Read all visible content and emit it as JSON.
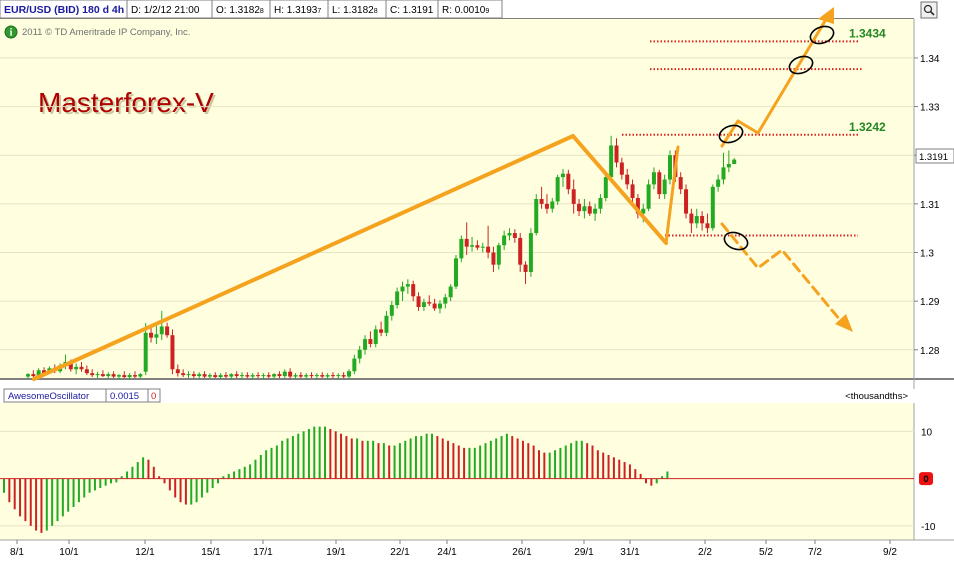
{
  "header": {
    "symbol": "EUR/USD (BID) 180 d 4h",
    "date": "D: 1/2/12 21:00",
    "open": "O: 1.3182",
    "open_sub": "8",
    "high": "H: 1.3193",
    "high_sub": "7",
    "low": "L: 1.3182",
    "low_sub": "8",
    "close": "C: 1.3191",
    "range": "R: 0.0010",
    "range_sub": "9",
    "copyright": "2011 © TD Ameritrade IP Company, Inc.",
    "brand": "Masterforex-V"
  },
  "oscillator": {
    "name": "AwesomeOscillator",
    "value": "0.0015",
    "zero_field": "0",
    "units": "<thousandths>",
    "zero_badge": "0"
  },
  "colors": {
    "panel_bg": "#ffffe0",
    "bull": "#22aa22",
    "bear": "#cc2222",
    "annotation": "#f5a21e",
    "level_line": "#dd2222",
    "level_label": "#228822"
  },
  "icons": [
    "info-icon",
    "zoom-icon"
  ],
  "chart_data": [
    {
      "type": "candlestick",
      "series": "EUR/USD (BID)",
      "ylim": [
        1.274,
        1.348
      ],
      "yticks": [
        "1.34",
        "1.33",
        "1.32",
        "1.31",
        "1.3",
        "1.29",
        "1.28"
      ],
      "last_price_label": "1.3191",
      "xticks": [
        "8/1",
        "10/1",
        "12/1",
        "15/1",
        "17/1",
        "19/1",
        "22/1",
        "24/1",
        "26/1",
        "29/1",
        "31/1",
        "2/2",
        "5/2",
        "7/2",
        "9/2"
      ],
      "candles": [
        [
          1.2745,
          1.2752,
          1.274,
          1.275
        ],
        [
          1.275,
          1.2758,
          1.2744,
          1.2746
        ],
        [
          1.2746,
          1.2762,
          1.2742,
          1.2758
        ],
        [
          1.2758,
          1.2764,
          1.2748,
          1.2752
        ],
        [
          1.2752,
          1.2766,
          1.275,
          1.2762
        ],
        [
          1.2762,
          1.277,
          1.2752,
          1.2756
        ],
        [
          1.2756,
          1.2772,
          1.2752,
          1.2768
        ],
        [
          1.2768,
          1.279,
          1.276,
          1.2775
        ],
        [
          1.2775,
          1.278,
          1.2755,
          1.276
        ],
        [
          1.276,
          1.2772,
          1.275,
          1.2765
        ],
        [
          1.2765,
          1.2775,
          1.2755,
          1.276
        ],
        [
          1.276,
          1.2768,
          1.2748,
          1.2752
        ],
        [
          1.2752,
          1.276,
          1.2744,
          1.2748
        ],
        [
          1.2748,
          1.2755,
          1.2742,
          1.275
        ],
        [
          1.275,
          1.2758,
          1.2744,
          1.2746
        ],
        [
          1.2746,
          1.2754,
          1.274,
          1.275
        ],
        [
          1.275,
          1.2756,
          1.2742,
          1.2745
        ],
        [
          1.2745,
          1.275,
          1.2738,
          1.2748
        ],
        [
          1.2748,
          1.2756,
          1.2742,
          1.2744
        ],
        [
          1.2744,
          1.2752,
          1.2738,
          1.2748
        ],
        [
          1.2748,
          1.2756,
          1.2742,
          1.2745
        ],
        [
          1.2745,
          1.2752,
          1.274,
          1.275
        ],
        [
          1.2755,
          1.2855,
          1.2748,
          1.2835
        ],
        [
          1.2835,
          1.2852,
          1.2815,
          1.2825
        ],
        [
          1.2825,
          1.285,
          1.2812,
          1.2832
        ],
        [
          1.2832,
          1.288,
          1.282,
          1.2848
        ],
        [
          1.2848,
          1.2856,
          1.2825,
          1.283
        ],
        [
          1.283,
          1.2842,
          1.275,
          1.276
        ],
        [
          1.276,
          1.277,
          1.2745,
          1.2752
        ],
        [
          1.2752,
          1.276,
          1.2744,
          1.2748
        ],
        [
          1.2748,
          1.2756,
          1.2742,
          1.275
        ],
        [
          1.275,
          1.2756,
          1.2742,
          1.2746
        ],
        [
          1.2746,
          1.2754,
          1.274,
          1.275
        ],
        [
          1.275,
          1.2756,
          1.2742,
          1.2745
        ],
        [
          1.2745,
          1.2752,
          1.274,
          1.2748
        ],
        [
          1.2748,
          1.2754,
          1.2742,
          1.2744
        ],
        [
          1.2744,
          1.2752,
          1.274,
          1.2748
        ],
        [
          1.2748,
          1.2754,
          1.2742,
          1.2745
        ],
        [
          1.2745,
          1.2752,
          1.274,
          1.275
        ],
        [
          1.275,
          1.2756,
          1.2742,
          1.2746
        ],
        [
          1.2746,
          1.2754,
          1.274,
          1.2748
        ],
        [
          1.2748,
          1.2754,
          1.2742,
          1.2745
        ],
        [
          1.2745,
          1.2752,
          1.274,
          1.2748
        ],
        [
          1.2748,
          1.2754,
          1.2742,
          1.2746
        ],
        [
          1.2746,
          1.2752,
          1.274,
          1.2748
        ],
        [
          1.2748,
          1.2754,
          1.2742,
          1.2745
        ],
        [
          1.2745,
          1.2752,
          1.274,
          1.275
        ],
        [
          1.275,
          1.2756,
          1.2742,
          1.2746
        ],
        [
          1.2746,
          1.276,
          1.2742,
          1.2755
        ],
        [
          1.2755,
          1.2762,
          1.274,
          1.2745
        ],
        [
          1.2745,
          1.2752,
          1.274,
          1.2748
        ],
        [
          1.2748,
          1.2754,
          1.2742,
          1.2745
        ],
        [
          1.2745,
          1.2752,
          1.274,
          1.2748
        ],
        [
          1.2748,
          1.2754,
          1.2742,
          1.2746
        ],
        [
          1.2746,
          1.2752,
          1.274,
          1.2748
        ],
        [
          1.2748,
          1.2754,
          1.2742,
          1.2745
        ],
        [
          1.2745,
          1.2752,
          1.274,
          1.2748
        ],
        [
          1.2748,
          1.2754,
          1.2742,
          1.2746
        ],
        [
          1.2746,
          1.2752,
          1.274,
          1.2748
        ],
        [
          1.2748,
          1.2754,
          1.2742,
          1.2745
        ],
        [
          1.2745,
          1.276,
          1.274,
          1.2756
        ],
        [
          1.2756,
          1.279,
          1.275,
          1.2782
        ],
        [
          1.2782,
          1.2808,
          1.2772,
          1.28
        ],
        [
          1.28,
          1.283,
          1.279,
          1.2822
        ],
        [
          1.2822,
          1.2838,
          1.2805,
          1.2812
        ],
        [
          1.2812,
          1.285,
          1.2805,
          1.2842
        ],
        [
          1.2842,
          1.2858,
          1.2828,
          1.2835
        ],
        [
          1.2835,
          1.288,
          1.2828,
          1.287
        ],
        [
          1.287,
          1.29,
          1.286,
          1.2892
        ],
        [
          1.2892,
          1.2928,
          1.2885,
          1.292
        ],
        [
          1.292,
          1.294,
          1.29,
          1.293
        ],
        [
          1.293,
          1.2945,
          1.2915,
          1.2935
        ],
        [
          1.2935,
          1.2942,
          1.29,
          1.291
        ],
        [
          1.291,
          1.2918,
          1.288,
          1.2888
        ],
        [
          1.2888,
          1.2905,
          1.288,
          1.2898
        ],
        [
          1.2898,
          1.2912,
          1.289,
          1.2895
        ],
        [
          1.2895,
          1.2905,
          1.288,
          1.2885
        ],
        [
          1.2885,
          1.2902,
          1.2875,
          1.2895
        ],
        [
          1.2895,
          1.2915,
          1.2885,
          1.2908
        ],
        [
          1.2908,
          1.2935,
          1.29,
          1.293
        ],
        [
          1.293,
          1.2995,
          1.2925,
          1.2988
        ],
        [
          1.2988,
          1.3035,
          1.298,
          1.3028
        ],
        [
          1.3028,
          1.3062,
          1.2995,
          1.3012
        ],
        [
          1.3012,
          1.3032,
          1.3002,
          1.3015
        ],
        [
          1.3015,
          1.3025,
          1.3005,
          1.301
        ],
        [
          1.301,
          1.302,
          1.3,
          1.3012
        ],
        [
          1.3012,
          1.3055,
          1.2988,
          1.3
        ],
        [
          1.3,
          1.3012,
          1.296,
          1.2975
        ],
        [
          1.2975,
          1.302,
          1.2965,
          1.3015
        ],
        [
          1.3015,
          1.3045,
          1.3005,
          1.3035
        ],
        [
          1.3035,
          1.305,
          1.3025,
          1.304
        ],
        [
          1.304,
          1.3048,
          1.302,
          1.303
        ],
        [
          1.303,
          1.304,
          1.296,
          1.2975
        ],
        [
          1.2975,
          1.2982,
          1.2935,
          1.296
        ],
        [
          1.296,
          1.305,
          1.295,
          1.304
        ],
        [
          1.304,
          1.312,
          1.3035,
          1.311
        ],
        [
          1.311,
          1.3135,
          1.309,
          1.31
        ],
        [
          1.31,
          1.312,
          1.308,
          1.309
        ],
        [
          1.309,
          1.3112,
          1.3082,
          1.3105
        ],
        [
          1.3105,
          1.316,
          1.3098,
          1.3155
        ],
        [
          1.3155,
          1.3172,
          1.3135,
          1.3162
        ],
        [
          1.3162,
          1.317,
          1.312,
          1.313
        ],
        [
          1.313,
          1.315,
          1.308,
          1.31
        ],
        [
          1.31,
          1.311,
          1.3075,
          1.3085
        ],
        [
          1.3085,
          1.311,
          1.307,
          1.3095
        ],
        [
          1.3095,
          1.3105,
          1.3075,
          1.308
        ],
        [
          1.308,
          1.31,
          1.3065,
          1.309
        ],
        [
          1.309,
          1.312,
          1.308,
          1.3112
        ],
        [
          1.3112,
          1.3165,
          1.3105,
          1.3155
        ],
        [
          1.3155,
          1.324,
          1.315,
          1.322
        ],
        [
          1.322,
          1.3235,
          1.3175,
          1.3185
        ],
        [
          1.3185,
          1.3195,
          1.315,
          1.316
        ],
        [
          1.316,
          1.3172,
          1.313,
          1.314
        ],
        [
          1.314,
          1.315,
          1.31,
          1.3112
        ],
        [
          1.3112,
          1.312,
          1.307,
          1.308
        ],
        [
          1.308,
          1.31,
          1.3062,
          1.309
        ],
        [
          1.309,
          1.315,
          1.3085,
          1.314
        ],
        [
          1.314,
          1.3175,
          1.313,
          1.3165
        ],
        [
          1.3165,
          1.317,
          1.311,
          1.312
        ],
        [
          1.312,
          1.316,
          1.311,
          1.315
        ],
        [
          1.315,
          1.321,
          1.314,
          1.32
        ],
        [
          1.32,
          1.321,
          1.3145,
          1.3155
        ],
        [
          1.3155,
          1.3165,
          1.312,
          1.313
        ],
        [
          1.313,
          1.314,
          1.307,
          1.308
        ],
        [
          1.308,
          1.309,
          1.304,
          1.306
        ],
        [
          1.306,
          1.309,
          1.305,
          1.3075
        ],
        [
          1.3075,
          1.3085,
          1.3045,
          1.306
        ],
        [
          1.306,
          1.308,
          1.304,
          1.305
        ],
        [
          1.305,
          1.314,
          1.3045,
          1.3135
        ],
        [
          1.3135,
          1.316,
          1.3125,
          1.315
        ],
        [
          1.315,
          1.3205,
          1.314,
          1.3175
        ],
        [
          1.3175,
          1.321,
          1.3165,
          1.3182
        ],
        [
          1.3182,
          1.3194,
          1.3182,
          1.3191
        ]
      ],
      "levels": [
        {
          "price": 1.3434,
          "label": "1.3434"
        },
        {
          "price": 1.3377
        },
        {
          "price": 1.3242,
          "label": "1.3242"
        },
        {
          "price": 1.3035
        }
      ]
    },
    {
      "type": "bar",
      "series": "AwesomeOscillator",
      "ylim": [
        -13,
        16
      ],
      "yticks": [
        "10",
        "0",
        "-10"
      ],
      "values": [
        -3,
        -5,
        -6.5,
        -8,
        -9,
        -10,
        -11,
        -11.5,
        -11,
        -10,
        -9,
        -8,
        -7,
        -6,
        -5,
        -4,
        -3,
        -2.5,
        -2,
        -1.5,
        -1,
        -0.8,
        0.5,
        1.5,
        2.5,
        3.5,
        4.5,
        4,
        2.5,
        0.5,
        -1,
        -2.5,
        -4,
        -5,
        -5.5,
        -5.5,
        -5,
        -4,
        -3,
        -2,
        -1,
        0.5,
        1,
        1.5,
        2,
        2.5,
        3,
        4,
        5,
        6,
        6.5,
        7,
        8,
        8.5,
        9,
        9.5,
        10,
        10.5,
        11,
        11,
        11,
        10.5,
        10,
        9.5,
        9,
        8.5,
        8.5,
        8,
        8,
        8,
        7.5,
        7.5,
        7,
        7,
        7.5,
        8,
        8.5,
        9,
        9,
        9.5,
        9.5,
        9,
        8.5,
        8,
        7.5,
        7,
        6.5,
        6.5,
        6.5,
        7,
        7.5,
        8,
        8.5,
        9,
        9.5,
        9,
        8.5,
        8,
        7.5,
        7,
        6,
        5.5,
        5.5,
        6,
        6.5,
        7,
        7.5,
        8,
        8,
        7.5,
        7,
        6,
        5.5,
        5,
        4.5,
        4,
        3.5,
        3,
        2,
        1,
        -1,
        -1.5,
        -1,
        0.5,
        1.5
      ]
    }
  ]
}
